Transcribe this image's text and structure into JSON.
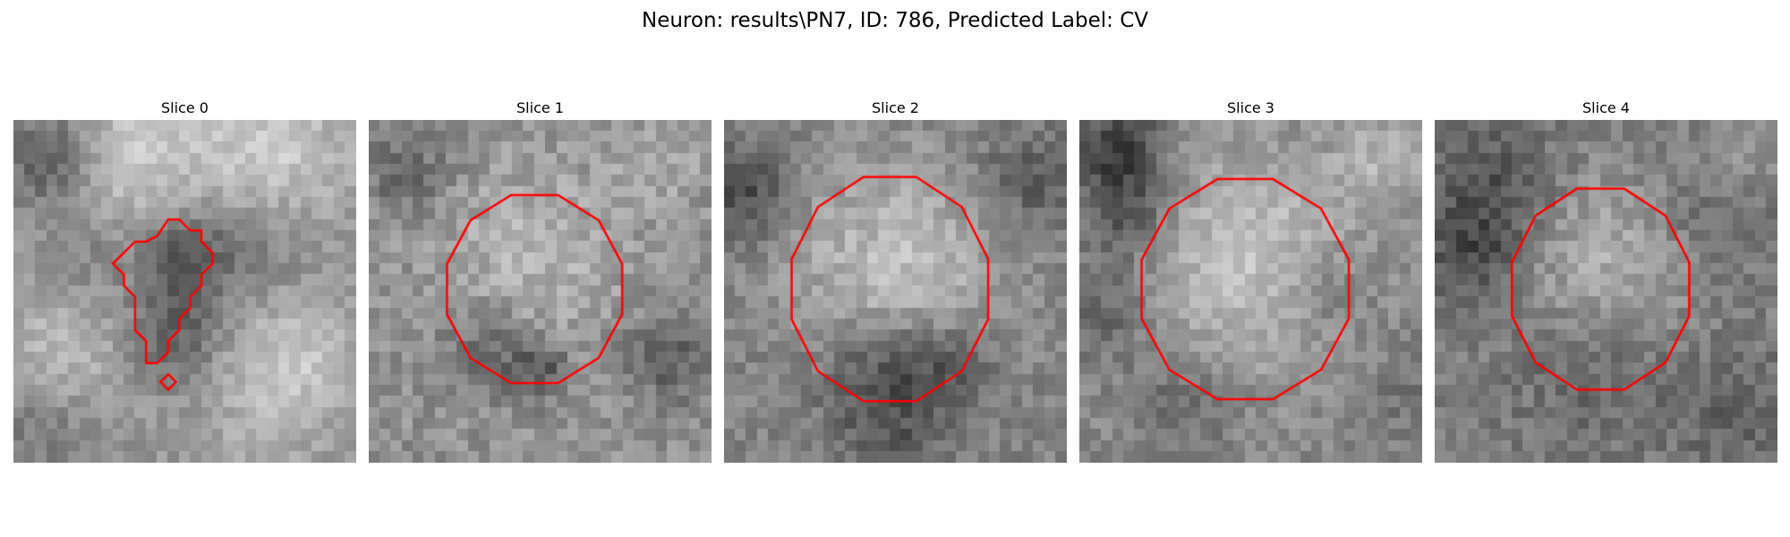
{
  "figure": {
    "title": "Neuron: results\\PN7, ID: 786, Predicted Label: CV"
  },
  "panels": [
    {
      "title": "Slice 0",
      "contour": "small irregular contour"
    },
    {
      "title": "Slice 1",
      "contour": "round contour"
    },
    {
      "title": "Slice 2",
      "contour": "round contour"
    },
    {
      "title": "Slice 3",
      "contour": "round contour"
    },
    {
      "title": "Slice 4",
      "contour": "round contour"
    }
  ],
  "colors": {
    "contour": "#ff0000",
    "background": "#ffffff"
  },
  "image_type": "grayscale microscopy slice"
}
